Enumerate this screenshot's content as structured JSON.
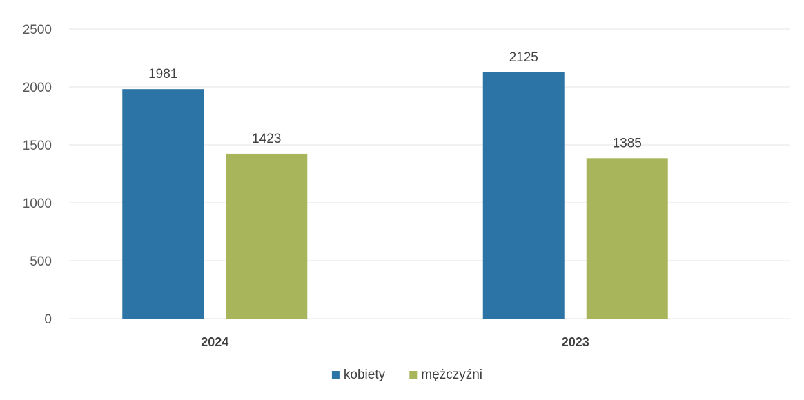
{
  "chart_data": {
    "type": "bar",
    "categories": [
      "2024",
      "2023"
    ],
    "series": [
      {
        "name": "kobiety",
        "values": [
          1981,
          2125
        ],
        "color": "#2d74a6"
      },
      {
        "name": "mężczyźni",
        "values": [
          1423,
          1385
        ],
        "color": "#a8b55a"
      }
    ],
    "yticks": [
      "0",
      "500",
      "1000",
      "1500",
      "2000",
      "2500"
    ],
    "ylim": [
      0,
      2500
    ],
    "grid": true,
    "legend_position": "bottom",
    "title": "",
    "xlabel": "",
    "ylabel": ""
  }
}
